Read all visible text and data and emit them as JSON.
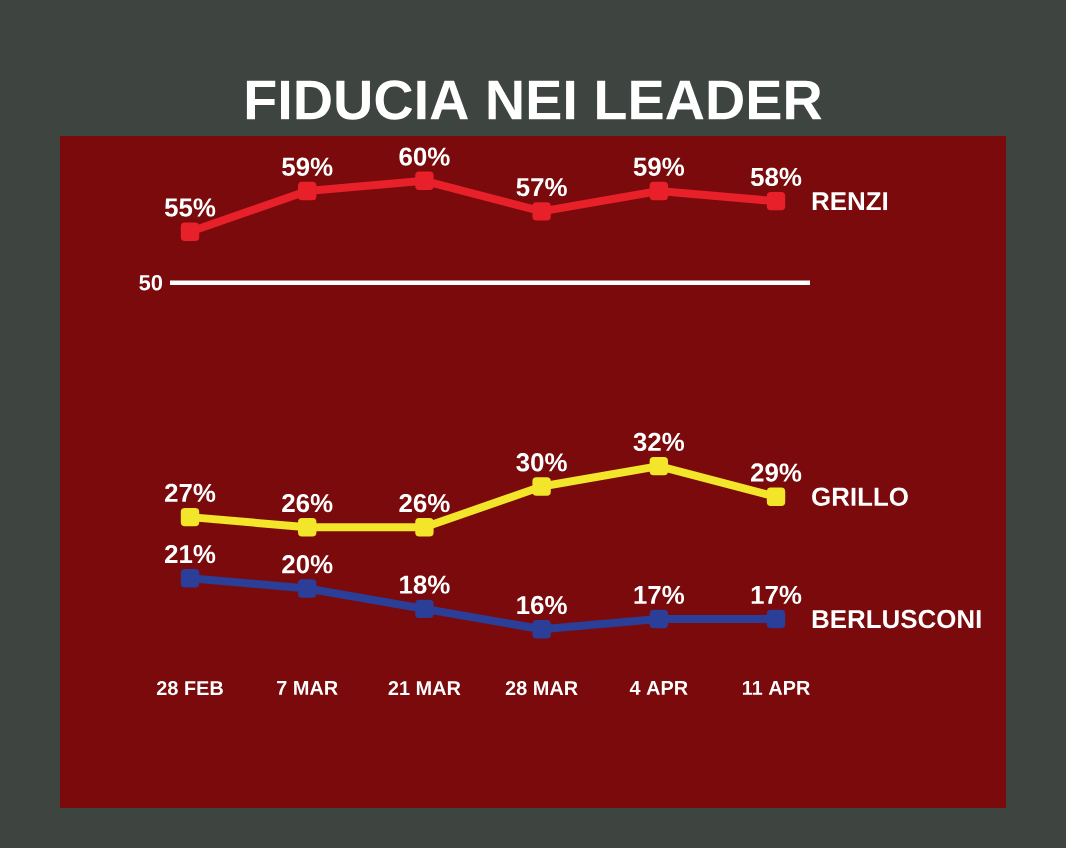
{
  "chart_data": {
    "type": "line",
    "title": "FIDUCIA NEI LEADER",
    "categories": [
      "28 FEB",
      "7 MAR",
      "21 MAR",
      "28 MAR",
      "4 APR",
      "11 APR"
    ],
    "series": [
      {
        "name": "RENZI",
        "color": "#e8202a",
        "values": [
          55,
          59,
          60,
          57,
          59,
          58
        ],
        "value_labels": [
          "55%",
          "59%",
          "60%",
          "57%",
          "59%",
          "58%"
        ]
      },
      {
        "name": "GRILLO",
        "color": "#f2e52a",
        "values": [
          27,
          26,
          26,
          30,
          32,
          29
        ],
        "value_labels": [
          "27%",
          "26%",
          "26%",
          "30%",
          "32%",
          "29%"
        ]
      },
      {
        "name": "BERLUSCONI",
        "color": "#2b3f99",
        "values": [
          21,
          20,
          18,
          16,
          17,
          17
        ],
        "value_labels": [
          "21%",
          "20%",
          "18%",
          "16%",
          "17%",
          "17%"
        ]
      }
    ],
    "ref_lines": [
      {
        "axis": "y",
        "value": 50,
        "label": "50",
        "color": "#ffffff"
      }
    ],
    "marker": "square",
    "line_style": "solid"
  }
}
